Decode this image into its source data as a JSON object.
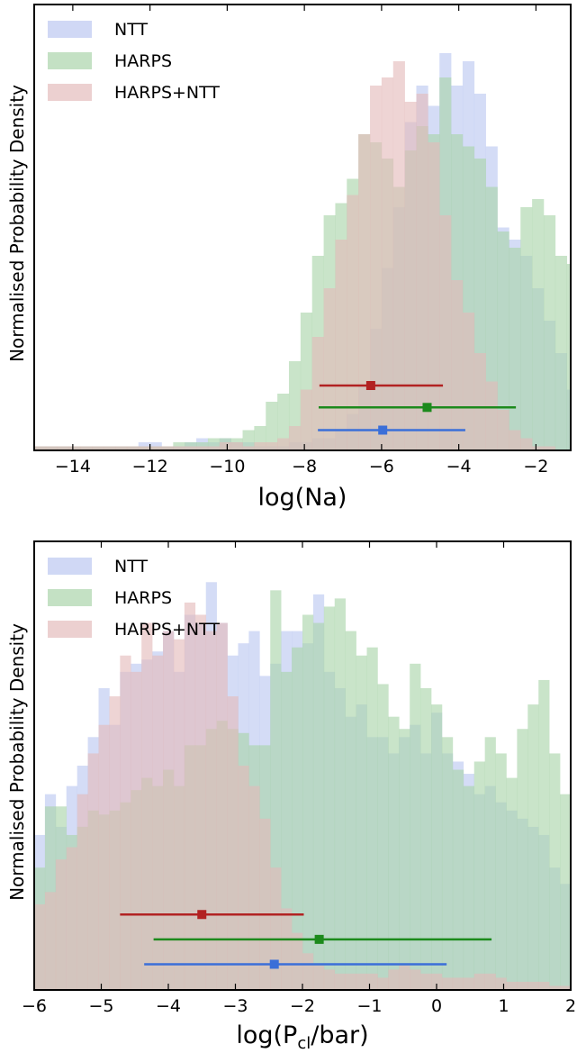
{
  "chart_data": [
    {
      "type": "histogram",
      "xlabel": "log(Na)",
      "ylabel": "Normalised Probability Density",
      "xlim": [
        -15,
        -1.1
      ],
      "ylim": [
        0,
        1.1
      ],
      "xticks": [
        -14,
        -12,
        -10,
        -8,
        -6,
        -4,
        -2
      ],
      "xtick_labels": [
        "−14",
        "−12",
        "−10",
        "−8",
        "−6",
        "−4",
        "−2"
      ],
      "yticks": [],
      "grid": false,
      "legend": {
        "placement": "top-left",
        "entries": [
          "NTT",
          "HARPS",
          "HARPS+NTT"
        ]
      },
      "bin_edges": {
        "start": -15,
        "width": 0.3,
        "count": 47
      },
      "series": [
        {
          "name": "NTT",
          "color": "#b9c6f0",
          "values": [
            0.01,
            0.01,
            0.01,
            0.01,
            0.01,
            0.01,
            0.01,
            0.01,
            0.01,
            0.02,
            0.02,
            0.01,
            0.01,
            0.02,
            0.03,
            0.02,
            0.03,
            0.02,
            0.02,
            0.01,
            0.01,
            0.01,
            0.02,
            0.02,
            0.03,
            0.03,
            0.05,
            0.09,
            0.16,
            0.3,
            0.45,
            0.6,
            0.81,
            0.9,
            0.85,
            0.98,
            0.9,
            0.96,
            0.88,
            0.75,
            0.55,
            0.52,
            0.48,
            0.4,
            0.32,
            0.24,
            0.15
          ]
        },
        {
          "name": "HARPS",
          "color": "#a8d3a8",
          "values": [
            0.01,
            0.01,
            0.01,
            0.01,
            0.01,
            0.01,
            0.01,
            0.01,
            0.01,
            0.01,
            0.01,
            0.01,
            0.02,
            0.02,
            0.02,
            0.03,
            0.03,
            0.03,
            0.05,
            0.06,
            0.12,
            0.14,
            0.22,
            0.34,
            0.48,
            0.58,
            0.61,
            0.67,
            0.78,
            0.76,
            0.72,
            0.65,
            0.74,
            0.8,
            0.78,
            0.92,
            0.78,
            0.75,
            0.72,
            0.65,
            0.54,
            0.5,
            0.6,
            0.62,
            0.58,
            0.48,
            0.46
          ]
        },
        {
          "name": "HARPS+NTT",
          "color": "#e3b9b9",
          "values": [
            0.01,
            0.01,
            0.01,
            0.01,
            0.01,
            0.01,
            0.01,
            0.01,
            0.01,
            0.01,
            0.01,
            0.01,
            0.01,
            0.01,
            0.01,
            0.01,
            0.02,
            0.02,
            0.01,
            0.02,
            0.02,
            0.03,
            0.06,
            0.15,
            0.28,
            0.4,
            0.52,
            0.63,
            0.78,
            0.9,
            0.92,
            0.96,
            0.86,
            0.88,
            0.76,
            0.58,
            0.42,
            0.34,
            0.24,
            0.17,
            0.1,
            0.05,
            0.03,
            0.01,
            0.01,
            0.0,
            0.0
          ]
        }
      ],
      "error_bars": [
        {
          "name": "HARPS+NTT",
          "color": "#b22222",
          "center": -6.28,
          "low": -7.61,
          "high": -4.41,
          "y": 0.16
        },
        {
          "name": "HARPS",
          "color": "#1c8a1c",
          "center": -4.82,
          "low": -7.63,
          "high": -2.52,
          "y": 0.106
        },
        {
          "name": "NTT",
          "color": "#3b6fd8",
          "center": -5.97,
          "low": -7.65,
          "high": -3.83,
          "y": 0.05
        }
      ]
    },
    {
      "type": "histogram",
      "xlabel": "log(P",
      "xlabel_sub": "cl",
      "xlabel_tail": "/bar)",
      "ylabel": "Normalised Probability Density",
      "xlim": [
        -6,
        2
      ],
      "ylim": [
        0,
        1.1
      ],
      "xticks": [
        -6,
        -5,
        -4,
        -3,
        -2,
        -1,
        0,
        1,
        2
      ],
      "xtick_labels": [
        "−6",
        "−5",
        "−4",
        "−3",
        "−2",
        "−1",
        "0",
        "1",
        "2"
      ],
      "yticks": [],
      "grid": false,
      "legend": {
        "placement": "top-left",
        "entries": [
          "NTT",
          "HARPS",
          "HARPS+NTT"
        ]
      },
      "bin_edges": {
        "start": -6,
        "width": 0.16,
        "count": 50
      },
      "series": [
        {
          "name": "NTT",
          "color": "#b9c6f0",
          "values": [
            0.38,
            0.48,
            0.4,
            0.5,
            0.55,
            0.62,
            0.74,
            0.65,
            0.78,
            0.8,
            0.81,
            0.83,
            0.88,
            0.78,
            0.92,
            0.9,
            1.0,
            0.9,
            0.82,
            0.85,
            0.88,
            0.77,
            0.8,
            0.88,
            0.88,
            0.85,
            0.97,
            0.78,
            0.74,
            0.67,
            0.7,
            0.62,
            0.62,
            0.58,
            0.62,
            0.65,
            0.58,
            0.68,
            0.58,
            0.56,
            0.53,
            0.48,
            0.5,
            0.46,
            0.44,
            0.42,
            0.4,
            0.38,
            0.3,
            0.26
          ]
        },
        {
          "name": "HARPS",
          "color": "#a8d3a8",
          "values": [
            0.3,
            0.45,
            0.45,
            0.38,
            0.4,
            0.44,
            0.43,
            0.44,
            0.46,
            0.49,
            0.52,
            0.5,
            0.54,
            0.5,
            0.6,
            0.6,
            0.64,
            0.66,
            0.64,
            0.63,
            0.6,
            0.6,
            0.98,
            0.78,
            0.84,
            0.92,
            0.9,
            0.94,
            0.96,
            0.88,
            0.82,
            0.84,
            0.75,
            0.67,
            0.64,
            0.8,
            0.74,
            0.7,
            0.62,
            0.54,
            0.5,
            0.56,
            0.62,
            0.58,
            0.52,
            0.64,
            0.7,
            0.76,
            0.58,
            0.48
          ]
        },
        {
          "name": "HARPS+NTT",
          "color": "#e3b9b9",
          "values": [
            0.21,
            0.24,
            0.32,
            0.35,
            0.48,
            0.58,
            0.65,
            0.72,
            0.82,
            0.78,
            0.9,
            0.82,
            0.88,
            0.86,
            0.95,
            0.92,
            0.88,
            0.9,
            0.72,
            0.55,
            0.5,
            0.42,
            0.3,
            0.2,
            0.14,
            0.09,
            0.06,
            0.05,
            0.04,
            0.04,
            0.04,
            0.04,
            0.03,
            0.05,
            0.06,
            0.05,
            0.04,
            0.04,
            0.03,
            0.03,
            0.03,
            0.04,
            0.04,
            0.03,
            0.02,
            0.02,
            0.02,
            0.02,
            0.01,
            0.01
          ]
        }
      ],
      "error_bars": [
        {
          "name": "HARPS+NTT",
          "color": "#b22222",
          "center": -3.5,
          "low": -4.72,
          "high": -1.98,
          "y": 0.185
        },
        {
          "name": "HARPS",
          "color": "#1c8a1c",
          "center": -1.75,
          "low": -4.22,
          "high": 0.82,
          "y": 0.124
        },
        {
          "name": "NTT",
          "color": "#3b6fd8",
          "center": -2.42,
          "low": -4.36,
          "high": 0.15,
          "y": 0.063
        }
      ]
    }
  ]
}
